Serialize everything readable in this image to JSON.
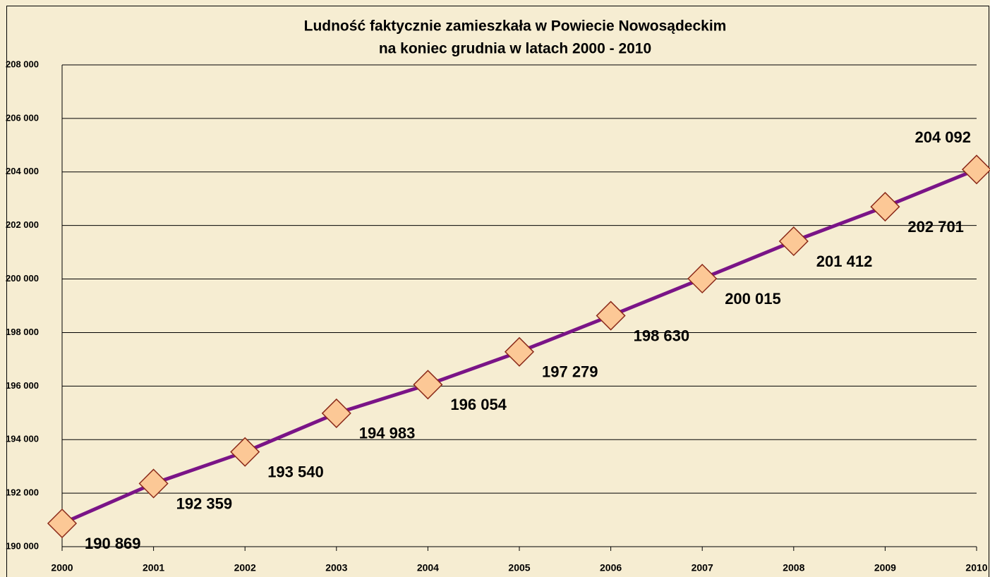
{
  "chart_data": {
    "type": "line",
    "title": [
      "Ludność faktycznie zamieszkała w Powiecie Nowosądeckim",
      "na koniec grudnia w latach 2000 - 2010"
    ],
    "categories": [
      "2000",
      "2001",
      "2002",
      "2003",
      "2004",
      "2005",
      "2006",
      "2007",
      "2008",
      "2009",
      "2010"
    ],
    "series": [
      {
        "color": "#7a1487",
        "values": [
          190869,
          192359,
          193540,
          194983,
          196054,
          197279,
          198630,
          200015,
          201412,
          202701,
          204092
        ],
        "value_labels": [
          "190 869",
          "192 359",
          "193 540",
          "194 983",
          "196 054",
          "197 279",
          "198 630",
          "200 015",
          "201 412",
          "202 701",
          "204 092"
        ],
        "marker_color": "#fcc896"
      }
    ],
    "ylim": [
      190000,
      208000
    ],
    "yticks": [
      {
        "value": 190000,
        "label": "190 000"
      },
      {
        "value": 192000,
        "label": "192 000"
      },
      {
        "value": 194000,
        "label": "194 000"
      },
      {
        "value": 196000,
        "label": "196 000"
      },
      {
        "value": 198000,
        "label": "198 000"
      },
      {
        "value": 200000,
        "label": "200 000"
      },
      {
        "value": 202000,
        "label": "202 000"
      },
      {
        "value": 204000,
        "label": "204 000"
      },
      {
        "value": 206000,
        "label": "206 000"
      },
      {
        "value": 208000,
        "label": "208 000"
      }
    ],
    "grid": true
  }
}
